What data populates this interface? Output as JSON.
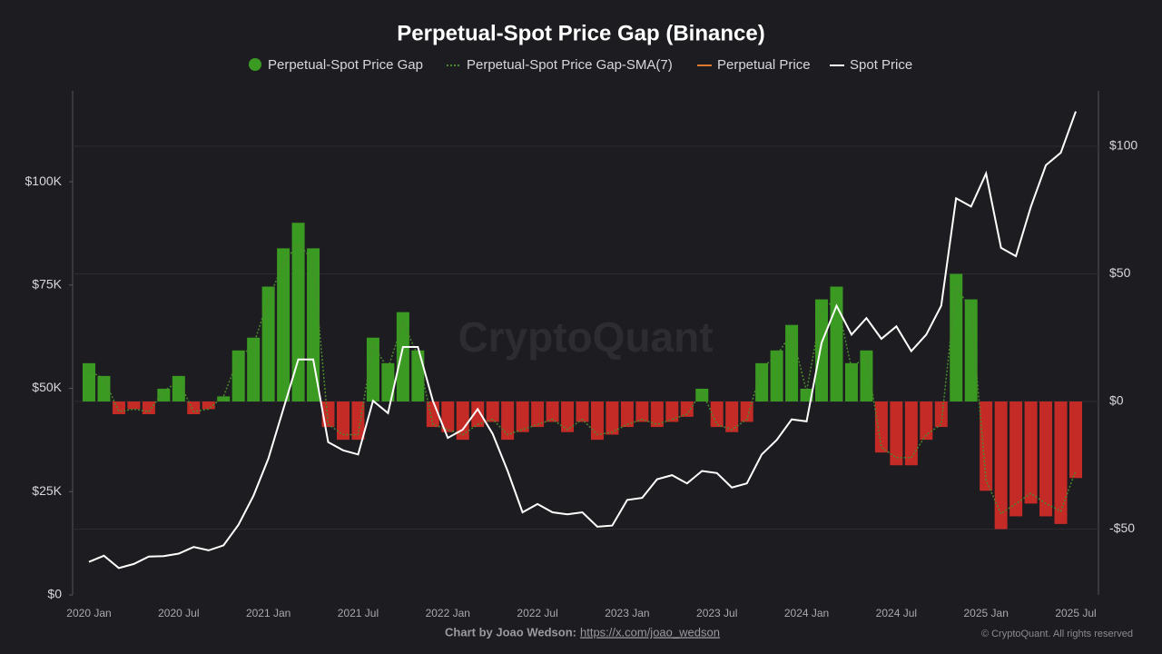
{
  "chart_data": {
    "type": "bar-line",
    "title": "Perpetual-Spot Price Gap (Binance)",
    "watermark": "CryptoQuant",
    "credit_label": "Chart by Joao Wedson:",
    "credit_link": "https://x.com/joao_wedson",
    "copyright": "© CryptoQuant. All rights reserved",
    "categories": [
      "2020 Jan",
      null,
      null,
      null,
      null,
      null,
      "2020 Jul",
      null,
      null,
      null,
      null,
      null,
      "2021 Jan",
      null,
      null,
      null,
      null,
      null,
      "2021 Jul",
      null,
      null,
      null,
      null,
      null,
      "2022 Jan",
      null,
      null,
      null,
      null,
      null,
      "2022 Jul",
      null,
      null,
      null,
      null,
      null,
      "2023 Jan",
      null,
      null,
      null,
      null,
      null,
      "2023 Jul",
      null,
      null,
      null,
      null,
      null,
      "2024 Jan",
      null,
      null,
      null,
      null,
      null,
      "2024 Jul",
      null,
      null,
      null,
      null,
      null,
      "2025 Jan",
      null,
      null,
      null,
      null,
      null,
      "2025 Jul"
    ],
    "ylim": [
      0,
      122000
    ],
    "yticks": [
      {
        "value": 0,
        "label": "$0"
      },
      {
        "value": 25000,
        "label": "$25K"
      },
      {
        "value": 50000,
        "label": "$50K"
      },
      {
        "value": 75000,
        "label": "$75K"
      },
      {
        "value": 100000,
        "label": "$100K"
      }
    ],
    "y2lim": [
      -75.8,
      121.7
    ],
    "y2ticks": [
      {
        "value": -50,
        "label": "-$50"
      },
      {
        "value": 0,
        "label": "$0"
      },
      {
        "value": 50,
        "label": "$50"
      },
      {
        "value": 100,
        "label": "$100"
      }
    ],
    "grid": true,
    "series": [
      {
        "name": "Perpetual-Spot Price Gap",
        "kind": "bar",
        "axis": "y2",
        "color": "#3b9a22",
        "negative_color": "#c42a26",
        "values": [
          15,
          10,
          -5,
          -3,
          -5,
          5,
          10,
          -5,
          -3,
          2,
          20,
          25,
          45,
          60,
          70,
          60,
          -10,
          -15,
          -15,
          25,
          15,
          35,
          20,
          -10,
          -12,
          -15,
          -10,
          -8,
          -15,
          -12,
          -10,
          -8,
          -12,
          -8,
          -15,
          -13,
          -10,
          -8,
          -10,
          -8,
          -6,
          5,
          -10,
          -12,
          -8,
          15,
          20,
          30,
          5,
          40,
          45,
          15,
          20,
          -20,
          -25,
          -25,
          -15,
          -10,
          50,
          40,
          -35,
          -50,
          -45,
          -40,
          -45,
          -48,
          -30
        ]
      },
      {
        "name": "Perpetual-Spot Price Gap-SMA(7)",
        "kind": "line",
        "axis": "y2",
        "color": "#4c8a2e",
        "values": [
          12,
          9,
          -4,
          -3,
          -4,
          4,
          8,
          -4,
          -3,
          2,
          17,
          22,
          40,
          54,
          62,
          55,
          -9,
          -13,
          -13,
          22,
          13,
          31,
          18,
          -9,
          -11,
          -13,
          -9,
          -7,
          -13,
          -11,
          -9,
          -7,
          -11,
          -7,
          -13,
          -12,
          -9,
          -7,
          -9,
          -7,
          -5,
          4,
          -9,
          -11,
          -7,
          13,
          18,
          27,
          4,
          36,
          40,
          13,
          18,
          -18,
          -22,
          -22,
          -13,
          -9,
          45,
          36,
          -31,
          -44,
          -40,
          -36,
          -40,
          -43,
          -27
        ]
      },
      {
        "name": "Perpetual Price",
        "kind": "line",
        "axis": "y",
        "color": "#e0782a",
        "values": [
          8000,
          9500,
          6500,
          7500,
          9300,
          9400,
          10000,
          11600,
          10800,
          12000,
          17000,
          24000,
          33000,
          45000,
          57000,
          57000,
          37000,
          35000,
          34000,
          47000,
          44000,
          60000,
          60000,
          47000,
          38000,
          40000,
          45000,
          39000,
          30000,
          20000,
          22000,
          20000,
          19500,
          20000,
          16500,
          16800,
          23000,
          23500,
          28000,
          29000,
          27000,
          30000,
          29500,
          26000,
          27000,
          34000,
          37500,
          42500,
          42000,
          61000,
          70000,
          63000,
          67000,
          62000,
          65000,
          59000,
          63000,
          70000,
          96000,
          94000,
          102000,
          84000,
          82000,
          94000,
          104000,
          107000,
          117000
        ]
      },
      {
        "name": "Spot Price",
        "kind": "line",
        "axis": "y",
        "color": "#ffffff",
        "values": [
          8000,
          9500,
          6500,
          7500,
          9300,
          9400,
          10000,
          11600,
          10800,
          12000,
          17000,
          24000,
          33000,
          45000,
          57000,
          57000,
          37000,
          35000,
          34000,
          47000,
          44000,
          60000,
          60000,
          47000,
          38000,
          40000,
          45000,
          39000,
          30000,
          20000,
          22000,
          20000,
          19500,
          20000,
          16500,
          16800,
          23000,
          23500,
          28000,
          29000,
          27000,
          30000,
          29500,
          26000,
          27000,
          34000,
          37500,
          42500,
          42000,
          61000,
          70000,
          63000,
          67000,
          62000,
          65000,
          59000,
          63000,
          70000,
          96000,
          94000,
          102000,
          84000,
          82000,
          94000,
          104000,
          107000,
          117000
        ]
      }
    ]
  }
}
